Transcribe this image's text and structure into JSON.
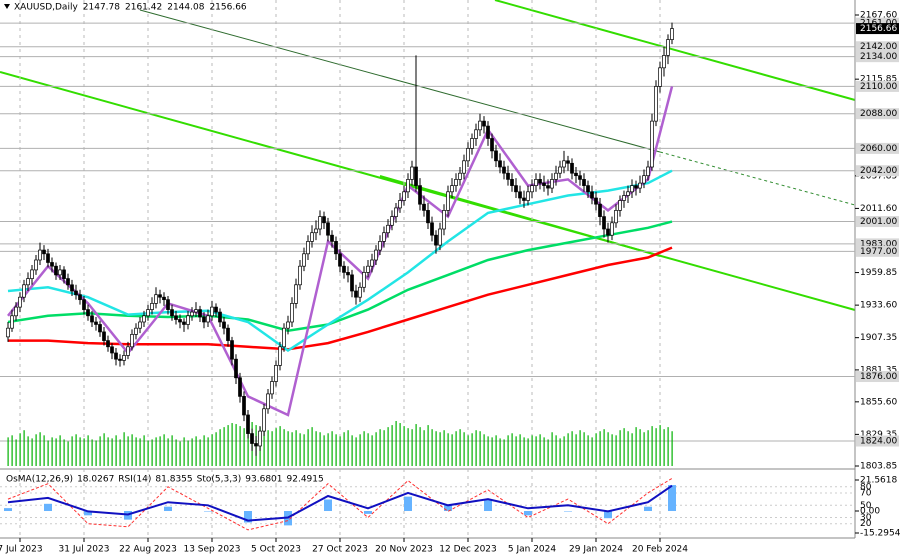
{
  "chart_data": {
    "type": "candlestick",
    "header": {
      "symbol": "XAUUSD,Daily",
      "open": 2147.78,
      "high": 2161.42,
      "low": 2144.08,
      "close": 2156.66
    },
    "ylim": [
      1803.85,
      2167.6
    ],
    "yticks": [
      {
        "value": 2167.6,
        "label": "2167.60"
      },
      2115.85,
      2037.85,
      {
        "value": 2011.6,
        "label": "2011.60"
      },
      1959.85,
      {
        "value": 1933.6,
        "label": "1933.60"
      },
      1907.35,
      1881.35,
      {
        "value": 1855.6,
        "label": "1855.60"
      },
      1829.35,
      1803.85
    ],
    "levels": [
      {
        "value": 2161,
        "label": "2161.00"
      },
      {
        "value": 2142,
        "label": "2142.00"
      },
      {
        "value": 2134,
        "label": "2134.00"
      },
      {
        "value": 2110,
        "label": "2110.00"
      },
      {
        "value": 2088,
        "label": "2088.00"
      },
      {
        "value": 2060,
        "label": "2060.00"
      },
      {
        "value": 2042,
        "label": "2042.00"
      },
      {
        "value": 2001,
        "label": "2001.00"
      },
      {
        "value": 1983,
        "label": "1983.00"
      },
      {
        "value": 1977,
        "label": "1977.00"
      },
      {
        "value": 1876,
        "label": "1876.00"
      },
      {
        "value": 1824,
        "label": "1824.00"
      }
    ],
    "xticks": [
      {
        "value": 3,
        "label": "7 Jul 2023"
      },
      {
        "value": 19,
        "label": "31 Jul 2023"
      },
      {
        "value": 35,
        "label": "22 Aug 2023"
      },
      {
        "value": 51,
        "label": "13 Sep 2023"
      },
      {
        "value": 67,
        "label": "5 Oct 2023"
      },
      {
        "value": 83,
        "label": "27 Oct 2023"
      },
      {
        "value": 99,
        "label": "20 Nov 2023"
      },
      {
        "value": 115,
        "label": "12 Dec 2023"
      },
      {
        "value": 131,
        "label": "5 Jan 2024"
      },
      {
        "value": 147,
        "label": "29 Jan 2024"
      },
      {
        "value": 163,
        "label": "20 Feb 2024"
      }
    ],
    "ohlc": [
      [
        1908,
        1920,
        1904,
        1915
      ],
      [
        1915,
        1930,
        1912,
        1925
      ],
      [
        1925,
        1936,
        1921,
        1932
      ],
      [
        1932,
        1944,
        1928,
        1940
      ],
      [
        1940,
        1954,
        1936,
        1950
      ],
      [
        1950,
        1960,
        1945,
        1955
      ],
      [
        1955,
        1966,
        1950,
        1962
      ],
      [
        1962,
        1974,
        1958,
        1970
      ],
      [
        1970,
        1984,
        1966,
        1978
      ],
      [
        1978,
        1982,
        1970,
        1975
      ],
      [
        1975,
        1979,
        1964,
        1968
      ],
      [
        1968,
        1972,
        1960,
        1965
      ],
      [
        1965,
        1968,
        1954,
        1958
      ],
      [
        1958,
        1966,
        1954,
        1962
      ],
      [
        1962,
        1965,
        1951,
        1955
      ],
      [
        1955,
        1959,
        1946,
        1950
      ],
      [
        1950,
        1954,
        1941,
        1945
      ],
      [
        1945,
        1950,
        1938,
        1942
      ],
      [
        1942,
        1946,
        1934,
        1938
      ],
      [
        1938,
        1941,
        1926,
        1930
      ],
      [
        1930,
        1934,
        1921,
        1925
      ],
      [
        1925,
        1929,
        1916,
        1920
      ],
      [
        1920,
        1924,
        1913,
        1918
      ],
      [
        1918,
        1921,
        1908,
        1912
      ],
      [
        1912,
        1916,
        1901,
        1905
      ],
      [
        1905,
        1909,
        1896,
        1900
      ],
      [
        1900,
        1903,
        1890,
        1895
      ],
      [
        1895,
        1899,
        1885,
        1890
      ],
      [
        1890,
        1894,
        1884,
        1889
      ],
      [
        1889,
        1897,
        1885,
        1893
      ],
      [
        1893,
        1904,
        1890,
        1900
      ],
      [
        1900,
        1914,
        1897,
        1910
      ],
      [
        1910,
        1919,
        1906,
        1915
      ],
      [
        1915,
        1924,
        1911,
        1920
      ],
      [
        1920,
        1929,
        1916,
        1925
      ],
      [
        1925,
        1934,
        1921,
        1930
      ],
      [
        1930,
        1940,
        1926,
        1935
      ],
      [
        1935,
        1948,
        1931,
        1942
      ],
      [
        1942,
        1946,
        1935,
        1940
      ],
      [
        1940,
        1944,
        1933,
        1938
      ],
      [
        1938,
        1941,
        1926,
        1930
      ],
      [
        1930,
        1934,
        1921,
        1925
      ],
      [
        1925,
        1929,
        1918,
        1922
      ],
      [
        1922,
        1926,
        1915,
        1920
      ],
      [
        1920,
        1923,
        1912,
        1918
      ],
      [
        1918,
        1929,
        1914,
        1925
      ],
      [
        1925,
        1932,
        1921,
        1928
      ],
      [
        1928,
        1936,
        1924,
        1930
      ],
      [
        1930,
        1933,
        1920,
        1924
      ],
      [
        1924,
        1928,
        1915,
        1920
      ],
      [
        1920,
        1930,
        1916,
        1925
      ],
      [
        1925,
        1937,
        1921,
        1932
      ],
      [
        1932,
        1935,
        1924,
        1928
      ],
      [
        1928,
        1931,
        1916,
        1920
      ],
      [
        1920,
        1924,
        1910,
        1915
      ],
      [
        1915,
        1918,
        1900,
        1905
      ],
      [
        1905,
        1908,
        1885,
        1890
      ],
      [
        1890,
        1894,
        1870,
        1875
      ],
      [
        1875,
        1879,
        1855,
        1860
      ],
      [
        1860,
        1864,
        1840,
        1845
      ],
      [
        1845,
        1849,
        1826,
        1830
      ],
      [
        1830,
        1834,
        1816,
        1822
      ],
      [
        1822,
        1828,
        1812,
        1820
      ],
      [
        1820,
        1836,
        1816,
        1832
      ],
      [
        1832,
        1854,
        1828,
        1850
      ],
      [
        1850,
        1866,
        1846,
        1862
      ],
      [
        1862,
        1876,
        1858,
        1872
      ],
      [
        1872,
        1889,
        1868,
        1885
      ],
      [
        1885,
        1904,
        1881,
        1900
      ],
      [
        1900,
        1919,
        1896,
        1915
      ],
      [
        1915,
        1925,
        1910,
        1920
      ],
      [
        1920,
        1940,
        1916,
        1935
      ],
      [
        1935,
        1955,
        1931,
        1950
      ],
      [
        1950,
        1970,
        1946,
        1965
      ],
      [
        1965,
        1980,
        1961,
        1975
      ],
      [
        1975,
        1990,
        1970,
        1985
      ],
      [
        1985,
        1998,
        1980,
        1992
      ],
      [
        1992,
        2002,
        1986,
        1995
      ],
      [
        1995,
        2010,
        1990,
        2005
      ],
      [
        2005,
        2009,
        1995,
        2000
      ],
      [
        2000,
        2004,
        1985,
        1990
      ],
      [
        1990,
        1994,
        1980,
        1985
      ],
      [
        1985,
        1989,
        1970,
        1975
      ],
      [
        1975,
        1979,
        1960,
        1965
      ],
      [
        1965,
        1969,
        1955,
        1960
      ],
      [
        1960,
        1965,
        1952,
        1958
      ],
      [
        1958,
        1962,
        1940,
        1945
      ],
      [
        1945,
        1950,
        1934,
        1940
      ],
      [
        1940,
        1952,
        1936,
        1948
      ],
      [
        1948,
        1965,
        1944,
        1960
      ],
      [
        1960,
        1970,
        1956,
        1965
      ],
      [
        1965,
        1975,
        1960,
        1970
      ],
      [
        1970,
        1982,
        1966,
        1978
      ],
      [
        1978,
        1990,
        1974,
        1985
      ],
      [
        1985,
        1997,
        1980,
        1992
      ],
      [
        1992,
        2003,
        1988,
        1998
      ],
      [
        1998,
        2010,
        1994,
        2005
      ],
      [
        2005,
        2016,
        2000,
        2012
      ],
      [
        2012,
        2024,
        2008,
        2018
      ],
      [
        2018,
        2030,
        2014,
        2025
      ],
      [
        2025,
        2040,
        2020,
        2035
      ],
      [
        2035,
        2050,
        2030,
        2045
      ],
      [
        2045,
        2135,
        2025,
        2030
      ],
      [
        2030,
        2036,
        2010,
        2015
      ],
      [
        2015,
        2022,
        2005,
        2010
      ],
      [
        2010,
        2016,
        1995,
        2000
      ],
      [
        2000,
        2005,
        1985,
        1990
      ],
      [
        1990,
        1994,
        1975,
        1982
      ],
      [
        1982,
        2000,
        1978,
        1995
      ],
      [
        1995,
        2015,
        1990,
        2010
      ],
      [
        2010,
        2030,
        2005,
        2025
      ],
      [
        2025,
        2036,
        2020,
        2030
      ],
      [
        2030,
        2040,
        2025,
        2035
      ],
      [
        2035,
        2045,
        2030,
        2040
      ],
      [
        2040,
        2055,
        2035,
        2050
      ],
      [
        2050,
        2065,
        2045,
        2060
      ],
      [
        2060,
        2072,
        2055,
        2068
      ],
      [
        2068,
        2080,
        2062,
        2075
      ],
      [
        2075,
        2088,
        2070,
        2082
      ],
      [
        2082,
        2086,
        2072,
        2078
      ],
      [
        2078,
        2082,
        2062,
        2068
      ],
      [
        2068,
        2072,
        2052,
        2058
      ],
      [
        2058,
        2063,
        2045,
        2050
      ],
      [
        2050,
        2056,
        2040,
        2045
      ],
      [
        2045,
        2050,
        2035,
        2040
      ],
      [
        2040,
        2046,
        2030,
        2035
      ],
      [
        2035,
        2040,
        2025,
        2030
      ],
      [
        2030,
        2036,
        2020,
        2025
      ],
      [
        2025,
        2030,
        2015,
        2020
      ],
      [
        2020,
        2026,
        2012,
        2018
      ],
      [
        2018,
        2030,
        2014,
        2025
      ],
      [
        2025,
        2035,
        2020,
        2030
      ],
      [
        2030,
        2040,
        2025,
        2035
      ],
      [
        2035,
        2040,
        2027,
        2032
      ],
      [
        2032,
        2038,
        2025,
        2030
      ],
      [
        2030,
        2035,
        2022,
        2028
      ],
      [
        2028,
        2040,
        2024,
        2035
      ],
      [
        2035,
        2046,
        2030,
        2040
      ],
      [
        2040,
        2050,
        2036,
        2045
      ],
      [
        2045,
        2058,
        2040,
        2050
      ],
      [
        2050,
        2054,
        2042,
        2048
      ],
      [
        2048,
        2052,
        2035,
        2040
      ],
      [
        2040,
        2045,
        2032,
        2038
      ],
      [
        2038,
        2042,
        2030,
        2035
      ],
      [
        2035,
        2040,
        2025,
        2030
      ],
      [
        2030,
        2034,
        2020,
        2025
      ],
      [
        2025,
        2030,
        2015,
        2020
      ],
      [
        2020,
        2025,
        2010,
        2015
      ],
      [
        2015,
        2020,
        1998,
        2005
      ],
      [
        2005,
        2010,
        1988,
        1995
      ],
      [
        1995,
        2000,
        1984,
        1990
      ],
      [
        1990,
        2005,
        1986,
        2000
      ],
      [
        2000,
        2015,
        1996,
        2010
      ],
      [
        2010,
        2022,
        2005,
        2018
      ],
      [
        2018,
        2026,
        2012,
        2022
      ],
      [
        2022,
        2030,
        2016,
        2025
      ],
      [
        2025,
        2035,
        2020,
        2030
      ],
      [
        2030,
        2034,
        2022,
        2028
      ],
      [
        2028,
        2038,
        2024,
        2032
      ],
      [
        2032,
        2043,
        2028,
        2038
      ],
      [
        2038,
        2050,
        2034,
        2045
      ],
      [
        2045,
        2088,
        2042,
        2082
      ],
      [
        2082,
        2115,
        2078,
        2110
      ],
      [
        2110,
        2130,
        2105,
        2125
      ],
      [
        2125,
        2142,
        2118,
        2135
      ],
      [
        2135,
        2152,
        2128,
        2147.78
      ],
      [
        2147.78,
        2161.42,
        2144.08,
        2156.66
      ]
    ],
    "volume": [
      28,
      30,
      26,
      32,
      35,
      29,
      27,
      31,
      33,
      30,
      25,
      28,
      27,
      30,
      26,
      24,
      29,
      31,
      28,
      27,
      30,
      26,
      25,
      29,
      32,
      28,
      27,
      30,
      26,
      33,
      29,
      31,
      28,
      27,
      30,
      25,
      26,
      28,
      29,
      31,
      27,
      30,
      26,
      24,
      28,
      25,
      27,
      29,
      26,
      30,
      28,
      31,
      33,
      36,
      38,
      40,
      42,
      41,
      39,
      37,
      44,
      43,
      40,
      38,
      36,
      35,
      34,
      37,
      39,
      36,
      34,
      33,
      35,
      32,
      31,
      36,
      38,
      34,
      33,
      30,
      32,
      34,
      31,
      29,
      33,
      35,
      30,
      28,
      31,
      34,
      32,
      30,
      33,
      36,
      35,
      38,
      40,
      44,
      42,
      39,
      37,
      36,
      41,
      38,
      35,
      40,
      36,
      34,
      33,
      35,
      32,
      31,
      34,
      36,
      33,
      30,
      32,
      35,
      34,
      31,
      29,
      28,
      30,
      27,
      26,
      30,
      32,
      29,
      31,
      28,
      27,
      30,
      29,
      31,
      28,
      26,
      33,
      30,
      27,
      29,
      32,
      34,
      31,
      35,
      33,
      30,
      28,
      32,
      34,
      36,
      33,
      31,
      30,
      35,
      37,
      34,
      32,
      38,
      36,
      33,
      35,
      39,
      37,
      40,
      36,
      38,
      34
    ],
    "volume_color": "#00b000",
    "ma_x": [
      0,
      10,
      20,
      30,
      40,
      50,
      60,
      70,
      80,
      90,
      100,
      110,
      120,
      130,
      140,
      150,
      160,
      166
    ],
    "moving_averages": [
      {
        "color": "#ff0000",
        "values": [
          1905,
          1905,
          1903,
          1902,
          1902,
          1902,
          1900,
          1898,
          1903,
          1912,
          1922,
          1932,
          1942,
          1950,
          1958,
          1966,
          1972,
          1980
        ]
      },
      {
        "color": "#00dd66",
        "values": [
          1920,
          1925,
          1927,
          1925,
          1924,
          1925,
          1922,
          1913,
          1918,
          1930,
          1946,
          1958,
          1970,
          1978,
          1984,
          1990,
          1996,
          2001
        ]
      },
      {
        "color": "#22e5e5",
        "values": [
          1945,
          1948,
          1940,
          1926,
          1928,
          1929,
          1920,
          1897,
          1918,
          1938,
          1960,
          1985,
          2008,
          2015,
          2022,
          2026,
          2032,
          2042
        ]
      },
      {
        "color": "#b060d0",
        "values": [
          1925,
          1965,
          1935,
          1895,
          1935,
          1925,
          1860,
          1845,
          1985,
          1955,
          2030,
          2005,
          2075,
          2030,
          2035,
          2010,
          2035,
          2110
        ]
      }
    ],
    "oscillator": {
      "osma": {
        "label": "OsMA(12,26,9)",
        "value": 18.0267,
        "color": "#66b3ff",
        "values": [
          2,
          5,
          -3,
          -6,
          3,
          0,
          -8,
          -10,
          8,
          -2,
          10,
          4,
          8,
          -3,
          0,
          -5,
          3,
          18.0267
        ]
      },
      "rsi": {
        "label": "RSI(14)",
        "value": 81.8355,
        "color": "#1010c0",
        "values": [
          55,
          62,
          40,
          35,
          55,
          50,
          25,
          30,
          65,
          45,
          70,
          50,
          60,
          45,
          50,
          40,
          55,
          81.8355
        ]
      },
      "sto": {
        "label": "Sto(5,3,3)",
        "main": 93.6801,
        "signal": 92.4915,
        "color": "#ff3030",
        "values": [
          60,
          85,
          20,
          15,
          80,
          45,
          10,
          25,
          85,
          30,
          90,
          40,
          75,
          30,
          60,
          20,
          70,
          93.6801
        ]
      },
      "ylim": [
        0,
        100
      ],
      "yticks": [
        80,
        70,
        50,
        30,
        20
      ],
      "osma_ylim": [
        -15.2954,
        21.5618
      ],
      "osma_yticks": [
        21.5618,
        {
          "value": 0,
          "label": "0.00"
        },
        -15.2954
      ]
    }
  }
}
